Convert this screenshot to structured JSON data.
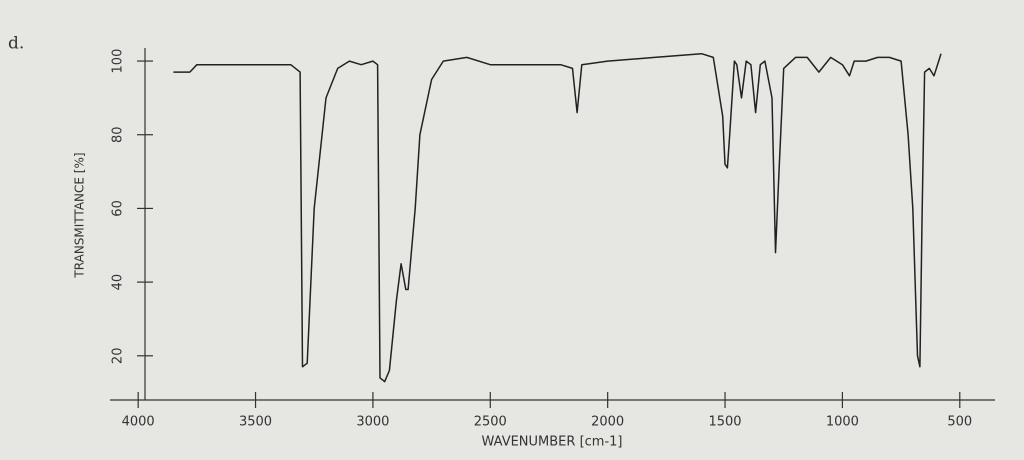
{
  "chart_data": {
    "type": "line",
    "panel_label": "d.",
    "xlabel": "WAVENUMBER [cm-1]",
    "ylabel": "TRANSMITTANCE [%]",
    "x": [
      3850,
      3780,
      3750,
      3500,
      3350,
      3310,
      3300,
      3280,
      3250,
      3200,
      3150,
      3100,
      3050,
      3000,
      2980,
      2970,
      2950,
      2930,
      2900,
      2880,
      2860,
      2850,
      2820,
      2800,
      2750,
      2700,
      2600,
      2500,
      2400,
      2200,
      2150,
      2130,
      2110,
      2000,
      1800,
      1600,
      1550,
      1510,
      1500,
      1490,
      1480,
      1460,
      1450,
      1430,
      1410,
      1390,
      1370,
      1350,
      1330,
      1300,
      1285,
      1270,
      1250,
      1200,
      1150,
      1100,
      1050,
      1000,
      970,
      950,
      900,
      850,
      800,
      750,
      720,
      700,
      680,
      670,
      660,
      650,
      630,
      610,
      590,
      580
    ],
    "series": [
      {
        "color": "#222222",
        "values": [
          97,
          97,
          99,
          99,
          99,
          97,
          17,
          18,
          60,
          90,
          98,
          100,
          99,
          100,
          99,
          14,
          13,
          16,
          35,
          45,
          38,
          38,
          60,
          80,
          95,
          100,
          101,
          99,
          99,
          99,
          98,
          86,
          99,
          100,
          101,
          102,
          101,
          85,
          72,
          71,
          80,
          100,
          99,
          90,
          100,
          99,
          86,
          99,
          100,
          90,
          48,
          70,
          98,
          101,
          101,
          97,
          101,
          99,
          96,
          100,
          100,
          101,
          101,
          100,
          80,
          60,
          20,
          17,
          60,
          97,
          98,
          96,
          100,
          102
        ]
      }
    ],
    "xlim": [
      4120,
      350
    ],
    "ylim": [
      8,
      103
    ],
    "xticks": [
      4000,
      3500,
      3000,
      2500,
      2000,
      1500,
      1000,
      500
    ],
    "yticks": [
      20,
      40,
      60,
      80,
      100
    ]
  }
}
